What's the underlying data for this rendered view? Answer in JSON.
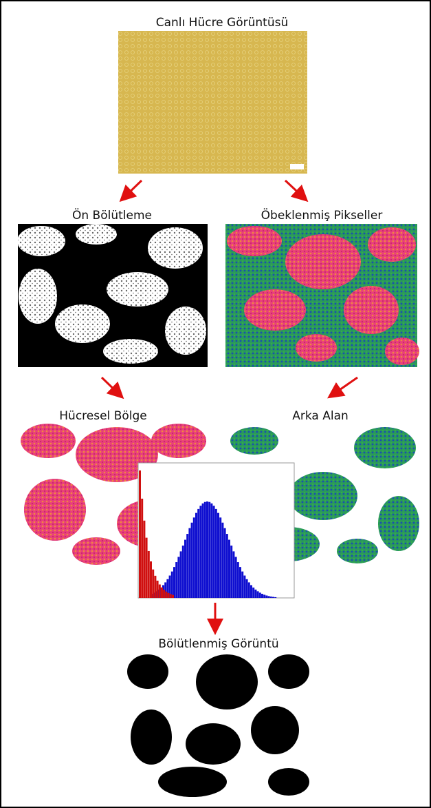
{
  "source": {
    "label": "Canlı Hücre Görüntüsü"
  },
  "stage1": [
    {
      "label": "Ön Bölütleme"
    },
    {
      "label": "Öbeklenmiş Pikseller"
    }
  ],
  "stage2": [
    {
      "label": "Hücresel Bölge"
    },
    {
      "label": "Arka Alan"
    }
  ],
  "result": {
    "label": "Bölütlenmiş Görüntü"
  }
}
